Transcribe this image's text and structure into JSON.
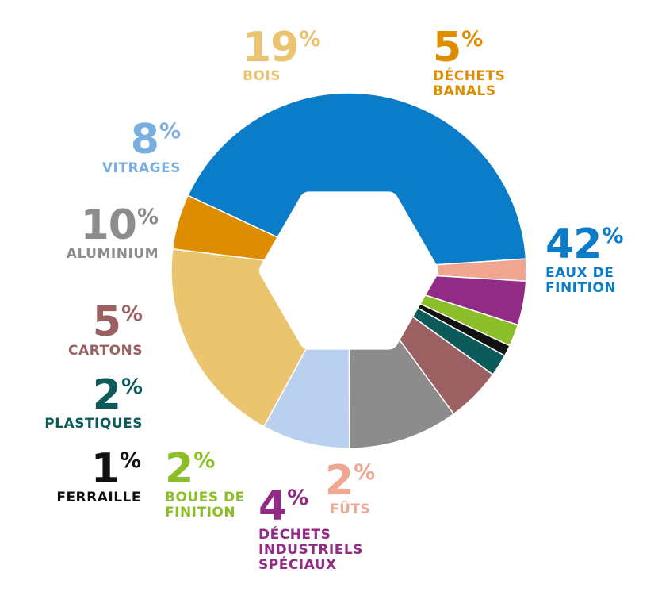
{
  "chart_data": {
    "type": "donut",
    "unit": "%",
    "slices": [
      {
        "value": "42",
        "label": "EAUX DE FINITION",
        "color": "#0a7cc8"
      },
      {
        "value": "2",
        "label": "FÛTS",
        "color": "#f0a690"
      },
      {
        "value": "4",
        "label": "DÉCHETS INDUSTRIELS SPÉCIAUX",
        "color": "#922b85"
      },
      {
        "value": "2",
        "label": "BOUES DE FINITION",
        "color": "#8cbe2a"
      },
      {
        "value": "1",
        "label": "FERRAILLE",
        "color": "#111111"
      },
      {
        "value": "2",
        "label": "PLASTIQUES",
        "color": "#0d5a5a"
      },
      {
        "value": "5",
        "label": "CARTONS",
        "color": "#9b6062"
      },
      {
        "value": "10",
        "label": "ALUMINIUM",
        "color": "#8c8c8c"
      },
      {
        "value": "8",
        "label": "VITRAGES",
        "color": "#b9d1ee"
      },
      {
        "value": "19",
        "label": "BOIS",
        "color": "#eac46e"
      },
      {
        "value": "5",
        "label": "DÉCHETS BANALS",
        "color": "#de8c00"
      }
    ]
  }
}
